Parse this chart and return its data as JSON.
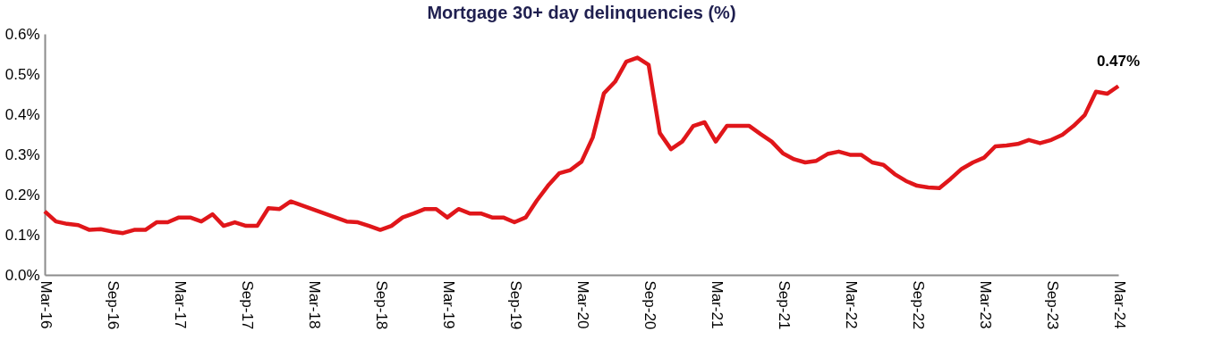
{
  "chart_data": {
    "type": "line",
    "title": "Mortgage 30+ day delinquencies (%)",
    "categories": [
      "Mar-16",
      null,
      null,
      null,
      null,
      null,
      "Sep-16",
      null,
      null,
      null,
      null,
      null,
      "Mar-17",
      null,
      null,
      null,
      null,
      null,
      "Sep-17",
      null,
      null,
      null,
      null,
      null,
      "Mar-18",
      null,
      null,
      null,
      null,
      null,
      "Sep-18",
      null,
      null,
      null,
      null,
      null,
      "Mar-19",
      null,
      null,
      null,
      null,
      null,
      "Sep-19",
      null,
      null,
      null,
      null,
      null,
      "Mar-20",
      null,
      null,
      null,
      null,
      null,
      "Sep-20",
      null,
      null,
      null,
      null,
      null,
      "Mar-21",
      null,
      null,
      null,
      null,
      null,
      "Sep-21",
      null,
      null,
      null,
      null,
      null,
      "Mar-22",
      null,
      null,
      null,
      null,
      null,
      "Sep-22",
      null,
      null,
      null,
      null,
      null,
      "Mar-23",
      null,
      null,
      null,
      null,
      null,
      "Sep-23",
      null,
      null,
      null,
      null,
      null,
      "Mar-24"
    ],
    "series": [
      {
        "color": "#e0161a",
        "values": [
          0.158,
          0.133,
          0.127,
          0.124,
          0.112,
          0.114,
          0.108,
          0.104,
          0.112,
          0.112,
          0.131,
          0.131,
          0.143,
          0.143,
          0.133,
          0.151,
          0.122,
          0.131,
          0.122,
          0.122,
          0.166,
          0.164,
          0.183,
          0.173,
          0.163,
          0.153,
          0.143,
          0.133,
          0.131,
          0.122,
          0.112,
          0.122,
          0.143,
          0.153,
          0.164,
          0.164,
          0.143,
          0.164,
          0.153,
          0.153,
          0.143,
          0.143,
          0.131,
          0.143,
          0.185,
          0.222,
          0.253,
          0.261,
          0.282,
          0.342,
          0.452,
          0.481,
          0.531,
          0.541,
          0.523,
          0.353,
          0.313,
          0.332,
          0.371,
          0.38,
          0.332,
          0.371,
          0.371,
          0.371,
          0.351,
          0.332,
          0.303,
          0.288,
          0.28,
          0.284,
          0.301,
          0.307,
          0.299,
          0.299,
          0.28,
          0.274,
          0.251,
          0.234,
          0.222,
          0.218,
          0.216,
          0.239,
          0.264,
          0.28,
          0.292,
          0.32,
          0.322,
          0.326,
          0.336,
          0.328,
          0.336,
          0.349,
          0.371,
          0.398,
          0.456,
          0.451,
          0.47
        ]
      }
    ],
    "ylim": [
      0,
      0.6
    ],
    "yticks": [
      {
        "value": 0,
        "label": "0.0%"
      },
      {
        "value": 0.1,
        "label": "0.1%"
      },
      {
        "value": 0.2,
        "label": "0.2%"
      },
      {
        "value": 0.3,
        "label": "0.3%"
      },
      {
        "value": 0.4,
        "label": "0.4%"
      },
      {
        "value": 0.5,
        "label": "0.5%"
      },
      {
        "value": 0.6,
        "label": "0.6%"
      }
    ],
    "annotations": [
      {
        "text": "0.47%",
        "x": "Mar-24",
        "y": 0.47
      }
    ],
    "grid": false,
    "marker": "none",
    "line_style": "solid"
  }
}
